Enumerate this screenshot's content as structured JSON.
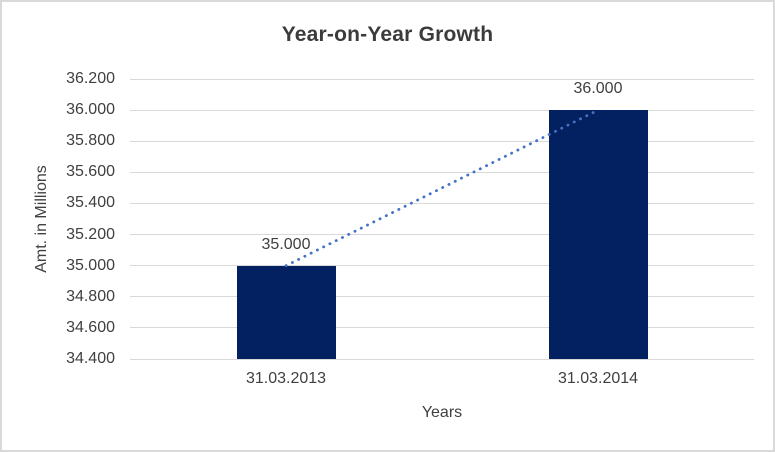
{
  "window": {
    "background": "#ffffff",
    "border_color": "#d9d9d9"
  },
  "chart_data": {
    "type": "bar",
    "title": "Year-on-Year Growth",
    "xlabel": "Years",
    "ylabel": "Amt. in Millions",
    "categories": [
      "31.03.2013",
      "31.03.2014"
    ],
    "values": [
      35.0,
      36.0
    ],
    "data_labels": [
      "35.000",
      "36.000"
    ],
    "yticks": [
      "34.400",
      "34.600",
      "34.800",
      "35.000",
      "35.200",
      "35.400",
      "35.600",
      "35.800",
      "36.000",
      "36.200"
    ],
    "ylim": [
      34.4,
      36.2
    ],
    "grid": true,
    "legend_position": "none",
    "bar_color": "#032160",
    "gridline_color": "#d9d9d9",
    "label_color": "#404040",
    "title_color": "#3b3b3b",
    "trendline": {
      "style": "dotted",
      "color": "#4472c4",
      "from_point": [
        0,
        35.0
      ],
      "to_point": [
        1,
        36.0
      ]
    }
  }
}
